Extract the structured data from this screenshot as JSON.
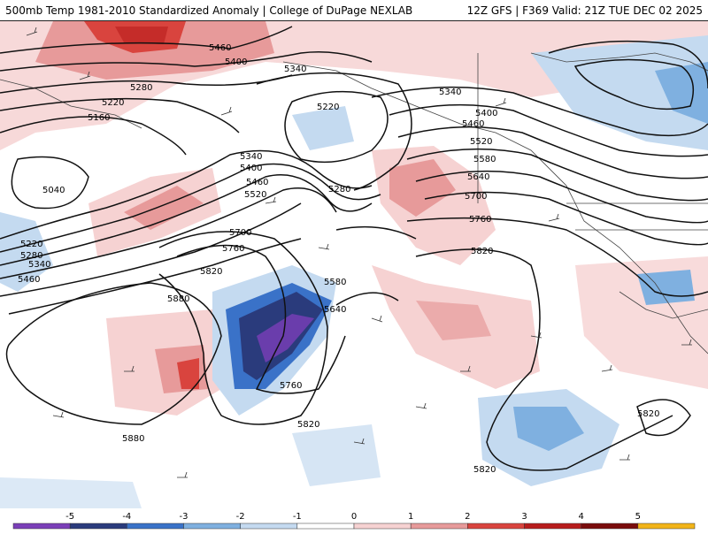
{
  "header": {
    "left": "500mb Temp 1981-2010 Standardized Anomaly | College of DuPage NEXLAB",
    "right": "12Z GFS | F369 Valid: 21Z TUE DEC 02 2025"
  },
  "colorbar": {
    "labels": [
      "-5",
      "-4",
      "-3",
      "-2",
      "-1",
      "0",
      "1",
      "2",
      "3",
      "4",
      "5"
    ],
    "colors": [
      "#7b3fb8",
      "#2a3b7c",
      "#3a72c8",
      "#7fb0e0",
      "#c4daf0",
      "#ffffff",
      "#f6d2d2",
      "#e79a9a",
      "#d9443e",
      "#b71c1c",
      "#7a0c0c",
      "#f2b418"
    ]
  },
  "contour_labels": [
    "5460",
    "5400",
    "5340",
    "5280",
    "5220",
    "5160",
    "5040",
    "5340",
    "5400",
    "5460",
    "5520",
    "5220",
    "5280",
    "5340",
    "5400",
    "5460",
    "5520",
    "5580",
    "5640",
    "5700",
    "5760",
    "5220",
    "5280",
    "5340",
    "5460",
    "5700",
    "5760",
    "5820",
    "5880",
    "5580",
    "5640",
    "5760",
    "5820",
    "5880",
    "5820",
    "5820",
    "5820"
  ]
}
